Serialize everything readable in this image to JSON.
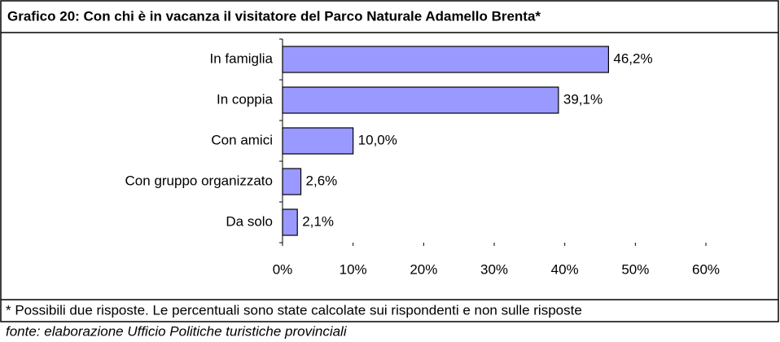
{
  "chart_data": {
    "type": "hbar",
    "title": "Grafico 20: Con chi è in vacanza il visitatore del Parco Naturale Adamello Brenta*",
    "categories": [
      "In famiglia",
      "In coppia",
      "Con amici",
      "Con gruppo organizzato",
      "Da solo"
    ],
    "values": [
      46.2,
      39.1,
      10.0,
      2.6,
      2.1
    ],
    "value_labels": [
      "46,2%",
      "39,1%",
      "10,0%",
      "2,6%",
      "2,1%"
    ],
    "color": "#9999ff",
    "xlim": [
      0,
      60
    ],
    "xticks": [
      {
        "value": 0,
        "label": "0%"
      },
      {
        "value": 10,
        "label": "10%"
      },
      {
        "value": 20,
        "label": "20%"
      },
      {
        "value": 30,
        "label": "30%"
      },
      {
        "value": 40,
        "label": "40%"
      },
      {
        "value": 50,
        "label": "50%"
      },
      {
        "value": 60,
        "label": "60%"
      }
    ],
    "footnote": "* Possibili due risposte. Le percentuali sono state calcolate sui rispondenti e non sulle risposte",
    "source": "fonte: elaborazione Ufficio Politiche turistiche provinciali"
  }
}
